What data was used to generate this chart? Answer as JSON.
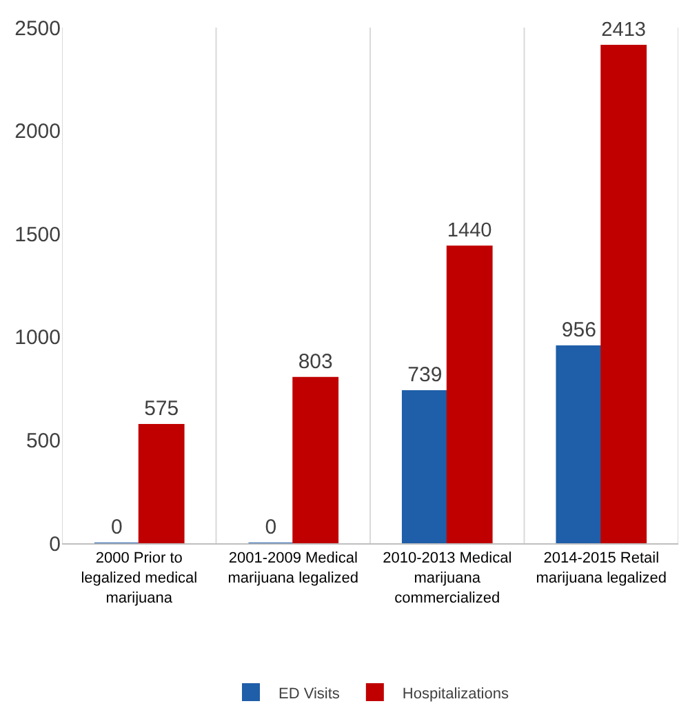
{
  "chart_data": {
    "type": "bar",
    "categories": [
      "2000 Prior to legalized medical marijuana",
      "2001-2009 Medical marijuana legalized",
      "2010-2013 Medical marijuana commercialized",
      "2014-2015 Retail marijuana legalized"
    ],
    "series": [
      {
        "name": "ED Visits",
        "color": "#1f5ea8",
        "values": [
          0,
          0,
          739,
          956
        ]
      },
      {
        "name": "Hospitalizations",
        "color": "#c00000",
        "values": [
          575,
          803,
          1440,
          2413
        ]
      }
    ],
    "ylim": [
      0,
      2500
    ],
    "yticks": [
      0,
      500,
      1000,
      1500,
      2000,
      2500
    ],
    "grid": "x",
    "legend": "bottom",
    "data_labels": true
  }
}
